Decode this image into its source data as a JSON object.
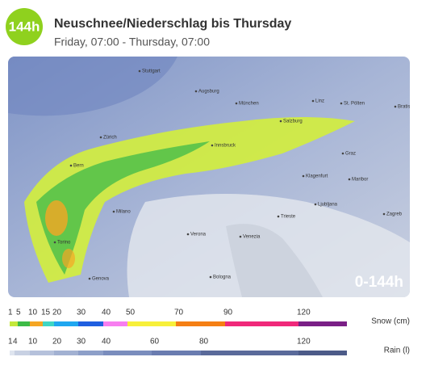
{
  "header": {
    "badge": "144h",
    "title": "Neuschnee/Niederschlag bis Thursday",
    "subtitle": "Friday, 07:00 - Thursday, 07:00"
  },
  "map": {
    "overlay": "0-144h",
    "places": [
      "Stuttgart",
      "Augsburg",
      "München",
      "Zürich",
      "Bern",
      "Innsbruck",
      "Salzburg",
      "Linz",
      "St. Pölten",
      "Bratislava",
      "Graz",
      "Klagenfurt",
      "Maribor",
      "Ljubljana",
      "Zagreb",
      "Milano",
      "Torino",
      "Verona",
      "Venezia",
      "Trieste",
      "Genova",
      "Bologna"
    ]
  },
  "legends": [
    {
      "label": "Snow (cm)",
      "ticks": [
        1,
        5,
        10,
        15,
        20,
        30,
        40,
        50,
        70,
        90,
        120
      ],
      "colors": [
        "#c3e83a",
        "#3dbb46",
        "#f5a623",
        "#3fd6c3",
        "#1fa7f0",
        "#1f5fe0",
        "#f77ef0",
        "#f7f03a",
        "#f57f14",
        "#f0287a",
        "#7a1f86"
      ]
    },
    {
      "label": "Rain (l)",
      "ticks": [
        1,
        4,
        10,
        20,
        30,
        40,
        60,
        80,
        120
      ],
      "colors": [
        "#dfe5ef",
        "#c8d1e3",
        "#b5c1db",
        "#a2b1d2",
        "#8d9fc8",
        "#7a8dbd",
        "#6a7cb0",
        "#5a6a9a",
        "#4c5b88"
      ]
    }
  ]
}
